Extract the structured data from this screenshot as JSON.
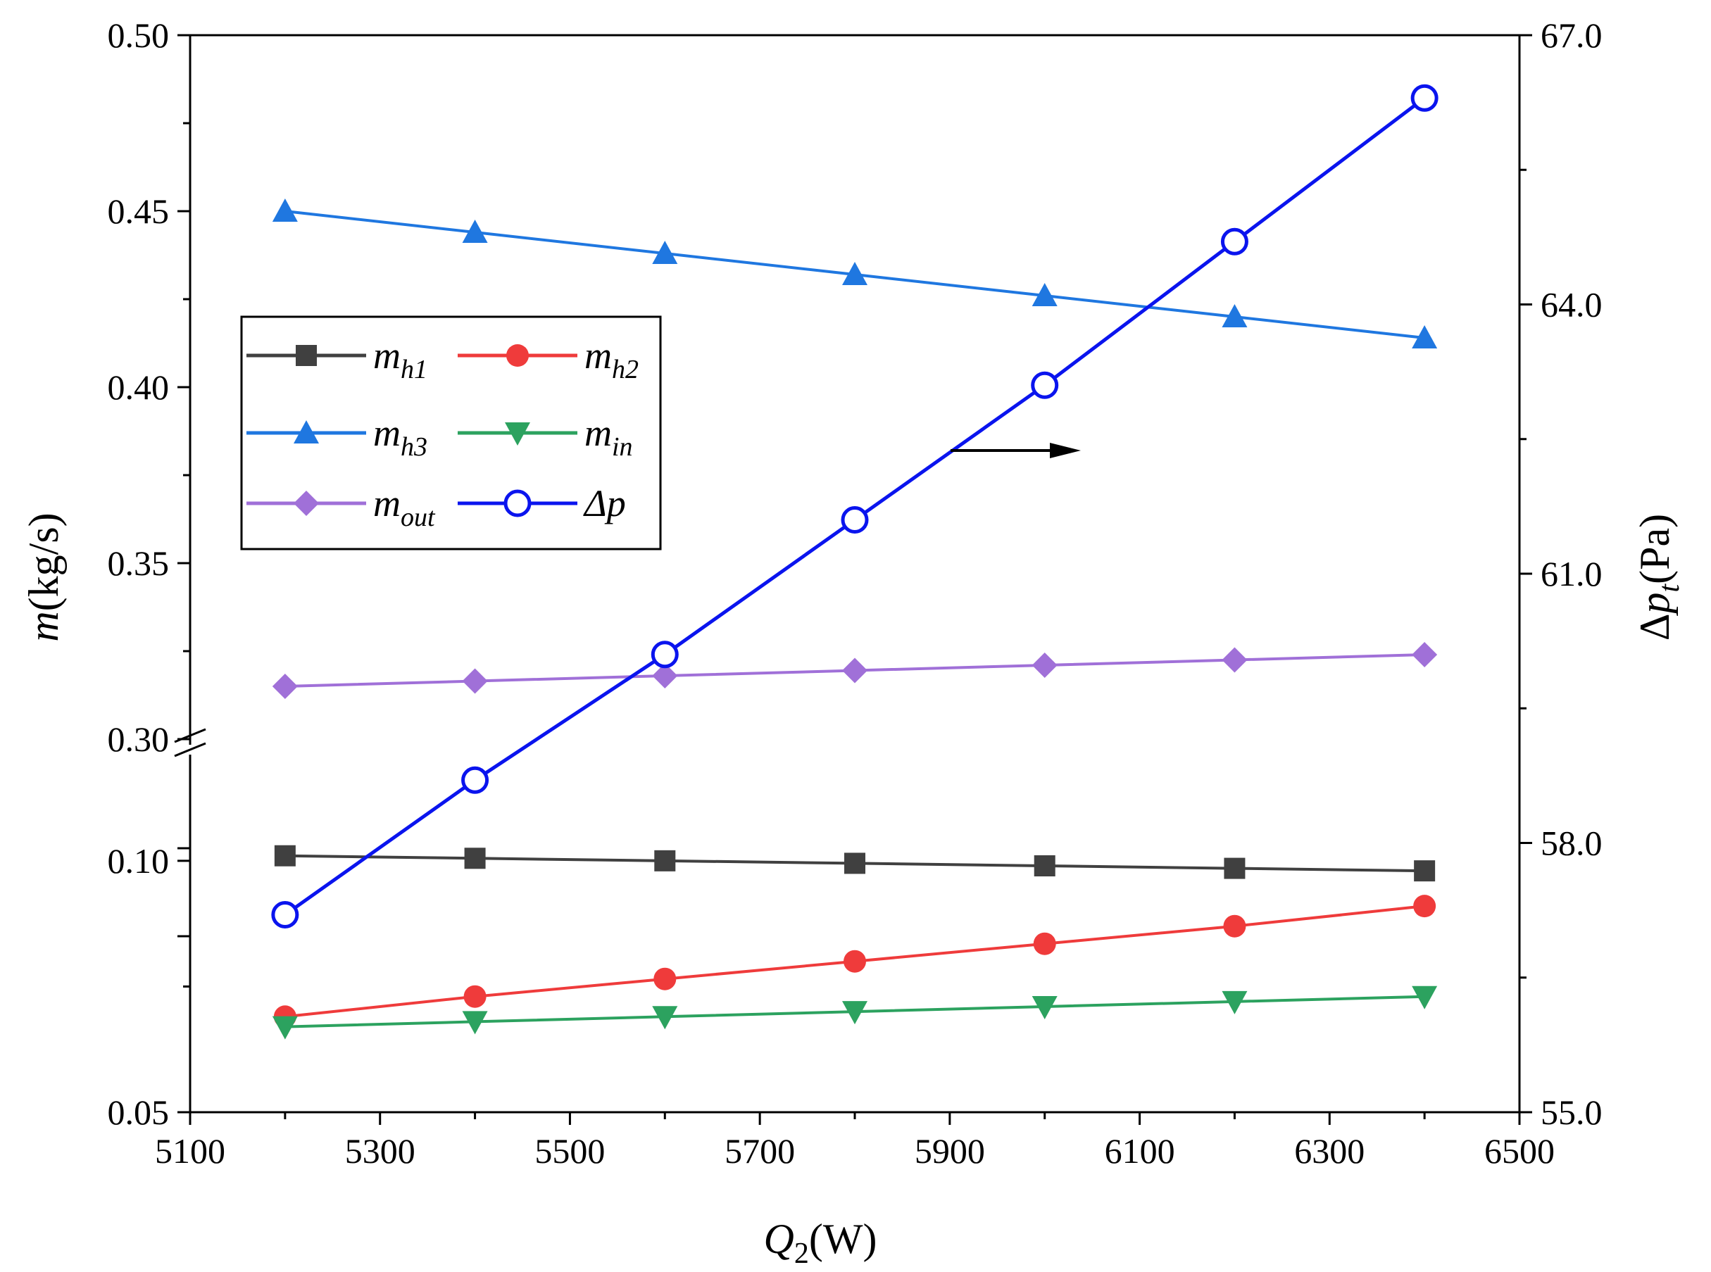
{
  "chart_data": {
    "type": "line",
    "x": [
      5200,
      5400,
      5600,
      5800,
      6000,
      6200,
      6400
    ],
    "x_axis": {
      "label_var": "Q",
      "label_sub": "2",
      "label_unit": "(W)",
      "range": [
        5100,
        6500
      ],
      "ticks": [
        "5100",
        "5300",
        "5500",
        "5700",
        "5900",
        "6100",
        "6300",
        "6500"
      ]
    },
    "y_left": {
      "label_var": "m",
      "label_unit": "(kg/s)",
      "break": true,
      "lower_range": [
        0.05,
        0.12
      ],
      "upper_range": [
        0.3,
        0.5
      ],
      "ticks": [
        "0.05",
        "0.10",
        "0.30",
        "0.35",
        "0.40",
        "0.45",
        "0.50"
      ]
    },
    "y_right": {
      "label_delta": "Δ",
      "label_var": "p",
      "label_sub": "t",
      "label_unit": "(Pa)",
      "range": [
        55.0,
        67.0
      ],
      "ticks": [
        "55.0",
        "58.0",
        "61.0",
        "64.0",
        "67.0"
      ]
    },
    "series": [
      {
        "name": "m_h1",
        "legend_main": "m",
        "legend_sub": "h1",
        "axis": "left",
        "color": "#404040",
        "marker": "square",
        "values": [
          0.101,
          0.1005,
          0.1,
          0.0995,
          0.099,
          0.0985,
          0.098
        ]
      },
      {
        "name": "m_h2",
        "legend_main": "m",
        "legend_sub": "h2",
        "axis": "left",
        "color": "#ef3b3b",
        "marker": "circle",
        "values": [
          0.069,
          0.073,
          0.0765,
          0.08,
          0.0835,
          0.087,
          0.091
        ]
      },
      {
        "name": "m_h3",
        "legend_main": "m",
        "legend_sub": "h3",
        "axis": "left",
        "color": "#1f77e0",
        "marker": "triangle-up",
        "values": [
          0.45,
          0.444,
          0.438,
          0.432,
          0.426,
          0.42,
          0.414
        ]
      },
      {
        "name": "m_in",
        "legend_main": "m",
        "legend_sub": "in",
        "axis": "left",
        "color": "#2ca25f",
        "marker": "triangle-down",
        "values": [
          0.067,
          0.068,
          0.069,
          0.07,
          0.071,
          0.072,
          0.073
        ]
      },
      {
        "name": "m_out",
        "legend_main": "m",
        "legend_sub": "out",
        "axis": "left",
        "color": "#a070d8",
        "marker": "diamond",
        "values": [
          0.315,
          0.3165,
          0.318,
          0.3195,
          0.321,
          0.3225,
          0.324
        ]
      },
      {
        "name": "Δp",
        "legend_main": "Δp",
        "legend_sub": "",
        "axis": "right",
        "color": "#0a14ee",
        "marker": "open-circle",
        "values": [
          57.2,
          58.7,
          60.1,
          61.6,
          63.1,
          64.7,
          66.3
        ]
      }
    ],
    "annotations": [
      {
        "type": "arrow",
        "direction": "right",
        "meaning": "Δp curve refers to the right axis"
      }
    ],
    "legend_position": "upper-left"
  }
}
